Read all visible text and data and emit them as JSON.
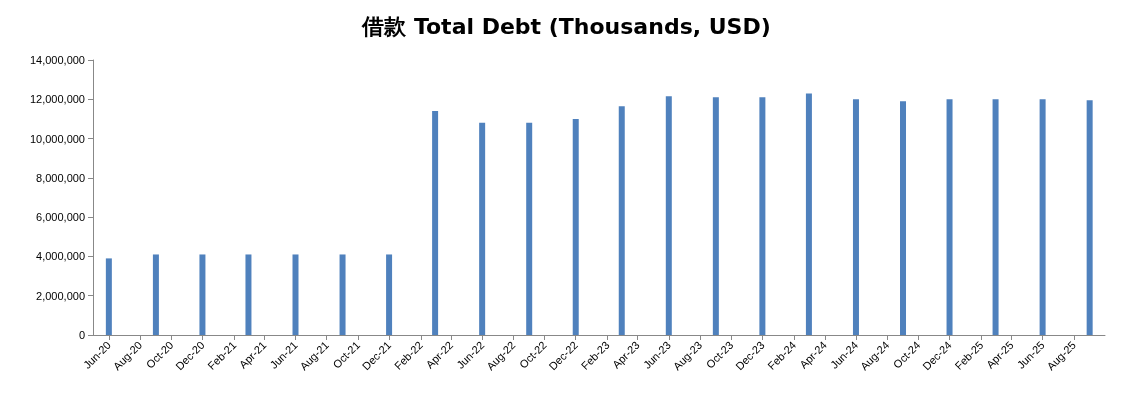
{
  "chart_data": {
    "type": "bar",
    "title": "借款 Total Debt (Thousands, USD)",
    "x": [
      "2020-06",
      "2020-09",
      "2020-12",
      "2021-03",
      "2021-06",
      "2021-09",
      "2021-12",
      "2022-03",
      "2022-06",
      "2022-09",
      "2022-12",
      "2023-03",
      "2023-06",
      "2023-09",
      "2023-12",
      "2024-03",
      "2024-06",
      "2024-09",
      "2024-12",
      "2025-03",
      "2025-06",
      "2025-09"
    ],
    "values": [
      3900000,
      4100000,
      4100000,
      4100000,
      4100000,
      4100000,
      4100000,
      11400000,
      10800000,
      10800000,
      11000000,
      11650000,
      12150000,
      12100000,
      12100000,
      12300000,
      12000000,
      11900000,
      12000000,
      12000000,
      12000000,
      11950000
    ],
    "color": "#4f81bd",
    "xlim": [
      "2020-05",
      "2025-10"
    ],
    "xticks": [
      {
        "value": "2020-06",
        "label": "Jun-20"
      },
      {
        "value": "2020-08",
        "label": "Aug-20"
      },
      {
        "value": "2020-10",
        "label": "Oct-20"
      },
      {
        "value": "2020-12",
        "label": "Dec-20"
      },
      {
        "value": "2021-02",
        "label": "Feb-21"
      },
      {
        "value": "2021-04",
        "label": "Apr-21"
      },
      {
        "value": "2021-06",
        "label": "Jun-21"
      },
      {
        "value": "2021-08",
        "label": "Aug-21"
      },
      {
        "value": "2021-10",
        "label": "Oct-21"
      },
      {
        "value": "2021-12",
        "label": "Dec-21"
      },
      {
        "value": "2022-02",
        "label": "Feb-22"
      },
      {
        "value": "2022-04",
        "label": "Apr-22"
      },
      {
        "value": "2022-06",
        "label": "Jun-22"
      },
      {
        "value": "2022-08",
        "label": "Aug-22"
      },
      {
        "value": "2022-10",
        "label": "Oct-22"
      },
      {
        "value": "2022-12",
        "label": "Dec-22"
      },
      {
        "value": "2023-02",
        "label": "Feb-23"
      },
      {
        "value": "2023-04",
        "label": "Apr-23"
      },
      {
        "value": "2023-06",
        "label": "Jun-23"
      },
      {
        "value": "2023-08",
        "label": "Aug-23"
      },
      {
        "value": "2023-10",
        "label": "Oct-23"
      },
      {
        "value": "2023-12",
        "label": "Dec-23"
      },
      {
        "value": "2024-02",
        "label": "Feb-24"
      },
      {
        "value": "2024-04",
        "label": "Apr-24"
      },
      {
        "value": "2024-06",
        "label": "Jun-24"
      },
      {
        "value": "2024-08",
        "label": "Aug-24"
      },
      {
        "value": "2024-10",
        "label": "Oct-24"
      },
      {
        "value": "2024-12",
        "label": "Dec-24"
      },
      {
        "value": "2025-02",
        "label": "Feb-25"
      },
      {
        "value": "2025-04",
        "label": "Apr-25"
      },
      {
        "value": "2025-06",
        "label": "Jun-25"
      },
      {
        "value": "2025-08",
        "label": "Aug-25"
      }
    ],
    "ylim": [
      0,
      14000000
    ],
    "yticks": [
      0,
      {
        "value": 2000000,
        "label": "2,000,000"
      },
      {
        "value": 4000000,
        "label": "4,000,000"
      },
      {
        "value": 6000000,
        "label": "6,000,000"
      },
      {
        "value": 8000000,
        "label": "8,000,000"
      },
      {
        "value": 10000000,
        "label": "10,000,000"
      },
      {
        "value": 12000000,
        "label": "12,000,000"
      },
      {
        "value": 14000000,
        "label": "14,000,000"
      }
    ],
    "grid": false
  }
}
